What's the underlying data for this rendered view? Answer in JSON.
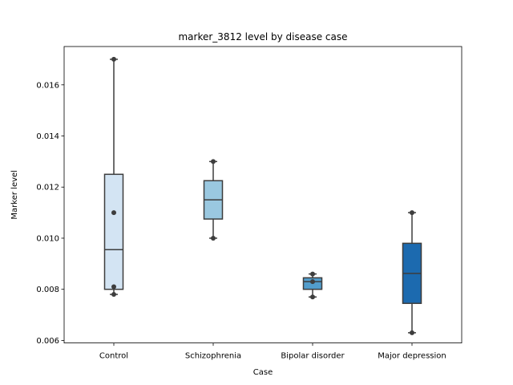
{
  "chart_data": {
    "type": "box",
    "title": "marker_3812 level by disease case",
    "xlabel": "Case",
    "ylabel": "Marker level",
    "ylim": [
      0.0059,
      0.0175
    ],
    "yticks": [
      0.006,
      0.008,
      0.01,
      0.012,
      0.014,
      0.016
    ],
    "ytick_labels": [
      "0.006",
      "0.008",
      "0.010",
      "0.012",
      "0.014",
      "0.016"
    ],
    "categories": [
      "Control",
      "Schizophrenia",
      "Bipolar disorder",
      "Major depression"
    ],
    "boxes": [
      {
        "category": "Control",
        "whisker_low": 0.0078,
        "q1": 0.008,
        "median": 0.00955,
        "q3": 0.0125,
        "whisker_high": 0.017,
        "color": "#d3e4f3",
        "points": [
          0.0078,
          0.0081,
          0.011,
          0.017
        ]
      },
      {
        "category": "Schizophrenia",
        "whisker_low": 0.01,
        "q1": 0.01075,
        "median": 0.0115,
        "q3": 0.01225,
        "whisker_high": 0.013,
        "color": "#9ac8e0",
        "points": [
          0.01,
          0.013
        ]
      },
      {
        "category": "Bipolar disorder",
        "whisker_low": 0.0077,
        "q1": 0.008,
        "median": 0.0083,
        "q3": 0.00845,
        "whisker_high": 0.0086,
        "color": "#529dcc",
        "points": [
          0.0077,
          0.0083,
          0.0086
        ]
      },
      {
        "category": "Major depression",
        "whisker_low": 0.0063,
        "q1": 0.00745,
        "median": 0.00862,
        "q3": 0.0098,
        "whisker_high": 0.011,
        "color": "#1c6aaf",
        "points": [
          0.0063,
          0.011
        ]
      }
    ],
    "grid": false
  }
}
